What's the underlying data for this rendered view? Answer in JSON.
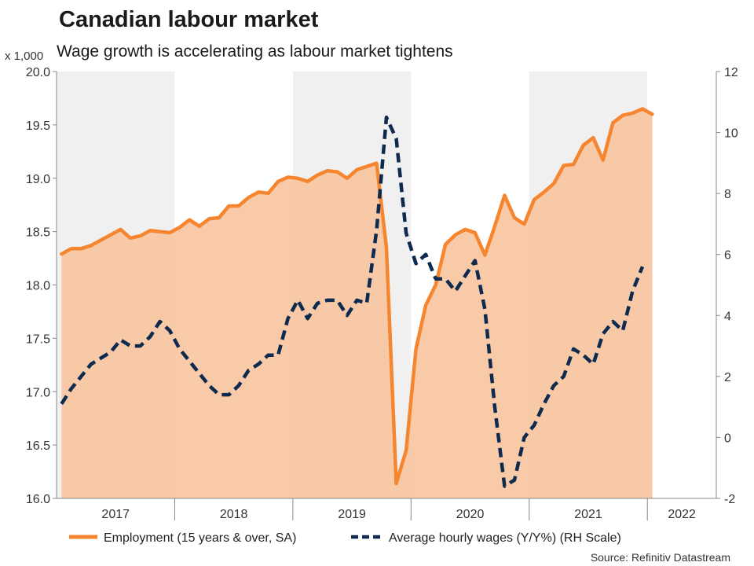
{
  "chart_data": {
    "type": "line",
    "title": "Canadian labour market",
    "subtitle": "Wage growth is accelerating as labour market tightens",
    "left_axis_unit": "x 1,000",
    "source": "Source: Refinitiv Datastream",
    "left_axis": {
      "min": 16.0,
      "max": 20.0,
      "ticks": [
        "16.0",
        "16.5",
        "17.0",
        "17.5",
        "18.0",
        "18.5",
        "19.0",
        "19.5",
        "20.0"
      ]
    },
    "right_axis": {
      "min": -2,
      "max": 12,
      "ticks": [
        "-2",
        "0",
        "2",
        "4",
        "6",
        "8",
        "10",
        "12"
      ]
    },
    "x_axis": {
      "start_month": "2017-01",
      "end_month": "2022-07",
      "year_labels": [
        "2017",
        "2018",
        "2019",
        "2020",
        "2021",
        "2022"
      ]
    },
    "shaded_years": [
      "2017",
      "2019",
      "2021"
    ],
    "colors": {
      "employment_line": "#f5862f",
      "employment_fill": "#f9c59f",
      "wages_line": "#0e2b4f",
      "shade": "#f0f0f0"
    },
    "series": [
      {
        "name": "Employment (15 years & over, SA)",
        "axis": "left",
        "style": "solid-area",
        "values": [
          18.29,
          18.34,
          18.34,
          18.37,
          18.42,
          18.47,
          18.52,
          18.44,
          18.46,
          18.51,
          18.5,
          18.49,
          18.54,
          18.61,
          18.55,
          18.62,
          18.63,
          18.74,
          18.74,
          18.82,
          18.87,
          18.86,
          18.97,
          19.01,
          19.0,
          18.97,
          19.03,
          19.07,
          19.06,
          19.0,
          19.08,
          19.11,
          19.14,
          18.35,
          16.14,
          16.45,
          17.4,
          17.81,
          18.0,
          18.38,
          18.47,
          18.52,
          18.49,
          18.28,
          18.55,
          18.84,
          18.63,
          18.57,
          18.8,
          18.87,
          18.95,
          19.12,
          19.13,
          19.31,
          19.38,
          19.17,
          19.52,
          19.59,
          19.61,
          19.65,
          19.6
        ]
      },
      {
        "name": "Average hourly wages (Y/Y%) (RH Scale)",
        "axis": "right",
        "style": "dashed",
        "values": [
          1.1,
          1.6,
          2.0,
          2.4,
          2.6,
          2.8,
          3.2,
          3.0,
          3.0,
          3.3,
          3.8,
          3.5,
          2.9,
          2.5,
          2.1,
          1.7,
          1.4,
          1.4,
          1.7,
          2.2,
          2.4,
          2.7,
          2.7,
          3.9,
          4.5,
          3.9,
          4.4,
          4.5,
          4.5,
          4.0,
          4.5,
          4.4,
          6.8,
          10.5,
          9.8,
          6.7,
          5.7,
          6.0,
          5.2,
          5.2,
          4.8,
          5.3,
          5.8,
          4.2,
          1.0,
          -1.6,
          -1.4,
          0.0,
          0.4,
          1.1,
          1.7,
          2.0,
          2.9,
          2.7,
          2.4,
          3.4,
          3.8,
          3.5,
          4.8,
          5.6
        ]
      }
    ]
  },
  "legend": {
    "employment_label": "Employment (15 years & over, SA)",
    "wages_label": "Average hourly wages (Y/Y%) (RH Scale)"
  }
}
